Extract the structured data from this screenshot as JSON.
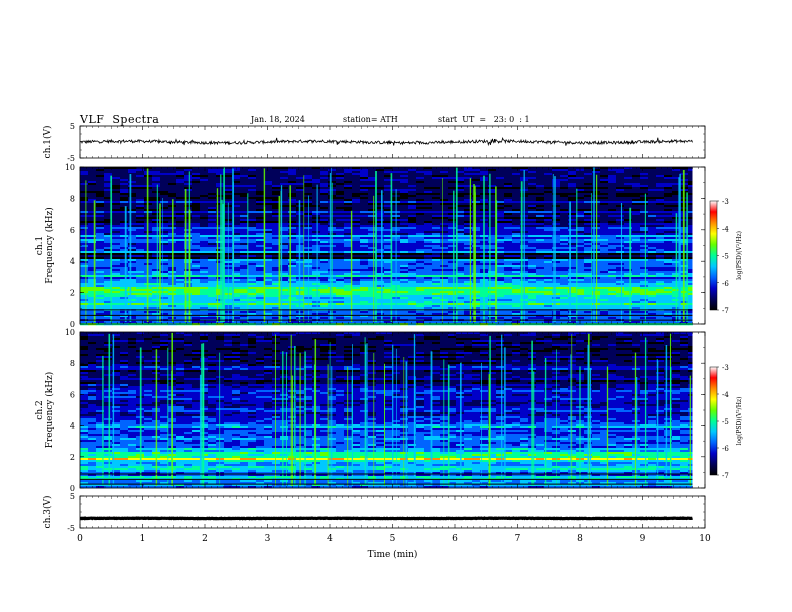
{
  "header": {
    "title": "VLF  Spectra",
    "date": "Jan. 18, 2024",
    "station": "station= ATH",
    "start_ut": "start  UT  =   23: 0  : 1"
  },
  "colors": {
    "colormap": [
      "#000000",
      "#00005a",
      "#0000c8",
      "#0064ff",
      "#00c8ff",
      "#00ff96",
      "#64ff00",
      "#ffff00",
      "#ff8c00",
      "#ff0000",
      "#ffffff"
    ],
    "trace": "#000000",
    "frame": "#000000",
    "background": "#ffffff"
  },
  "chart_data": [
    {
      "type": "line",
      "panel": "ch1-waveform",
      "ylabel": "ch.1(V)",
      "ylim": [
        -5,
        5
      ],
      "yticks": [
        "5",
        "-5"
      ],
      "description_values": "Noisy waveform centered near 0 V, amplitude about ±1 V over 0–9.8 min",
      "x_range": [
        0,
        9.8
      ],
      "level": 0,
      "noise_amplitude": 1
    },
    {
      "type": "heatmap",
      "panel": "ch1-spectrogram",
      "ylabel": "ch.1\nFrequency (kHz)",
      "ylabel_lines": [
        "ch.1",
        "Frequency (kHz)"
      ],
      "ylim": [
        0,
        10
      ],
      "yticks": [
        "0",
        "2",
        "4",
        "6",
        "8",
        "10"
      ],
      "x_range": [
        0,
        9.8
      ],
      "colorbar": {
        "label": "log(PSD)(V²/Hz)",
        "range": [
          -7,
          -3
        ],
        "ticks": [
          "-3",
          "-4",
          "-5",
          "-6",
          "-7"
        ]
      },
      "features": {
        "strong_band_khz": [
          1.9,
          2.4
        ],
        "dark_band_khz": [
          4.2,
          4.5
        ],
        "sferics_count": 70
      }
    },
    {
      "type": "heatmap",
      "panel": "ch2-spectrogram",
      "ylabel": "ch.2\nFrequency (kHz)",
      "ylabel_lines": [
        "ch.2",
        "Frequency (kHz)"
      ],
      "ylim": [
        0,
        10
      ],
      "yticks": [
        "0",
        "2",
        "4",
        "6",
        "8",
        "10"
      ],
      "x_range": [
        0,
        9.8
      ],
      "colorbar": {
        "label": "log(PSD)(V²/Hz)",
        "range": [
          -7,
          -3
        ],
        "ticks": [
          "-3",
          "-4",
          "-5",
          "-6",
          "-7"
        ]
      },
      "features": {
        "strong_band_khz": [
          1.8,
          2.3
        ],
        "sferics_count": 70
      }
    },
    {
      "type": "line",
      "panel": "ch3-waveform",
      "ylabel": "ch.3(V)",
      "ylim": [
        -5,
        5
      ],
      "yticks": [
        "5",
        "-5"
      ],
      "x_range": [
        0,
        9.8
      ],
      "level": -2,
      "noise_amplitude": 0.15
    }
  ],
  "xaxis": {
    "label": "Time  (min)",
    "xlim": [
      0,
      10
    ],
    "ticks": [
      "0",
      "1",
      "2",
      "3",
      "4",
      "5",
      "6",
      "7",
      "8",
      "9",
      "10"
    ]
  }
}
